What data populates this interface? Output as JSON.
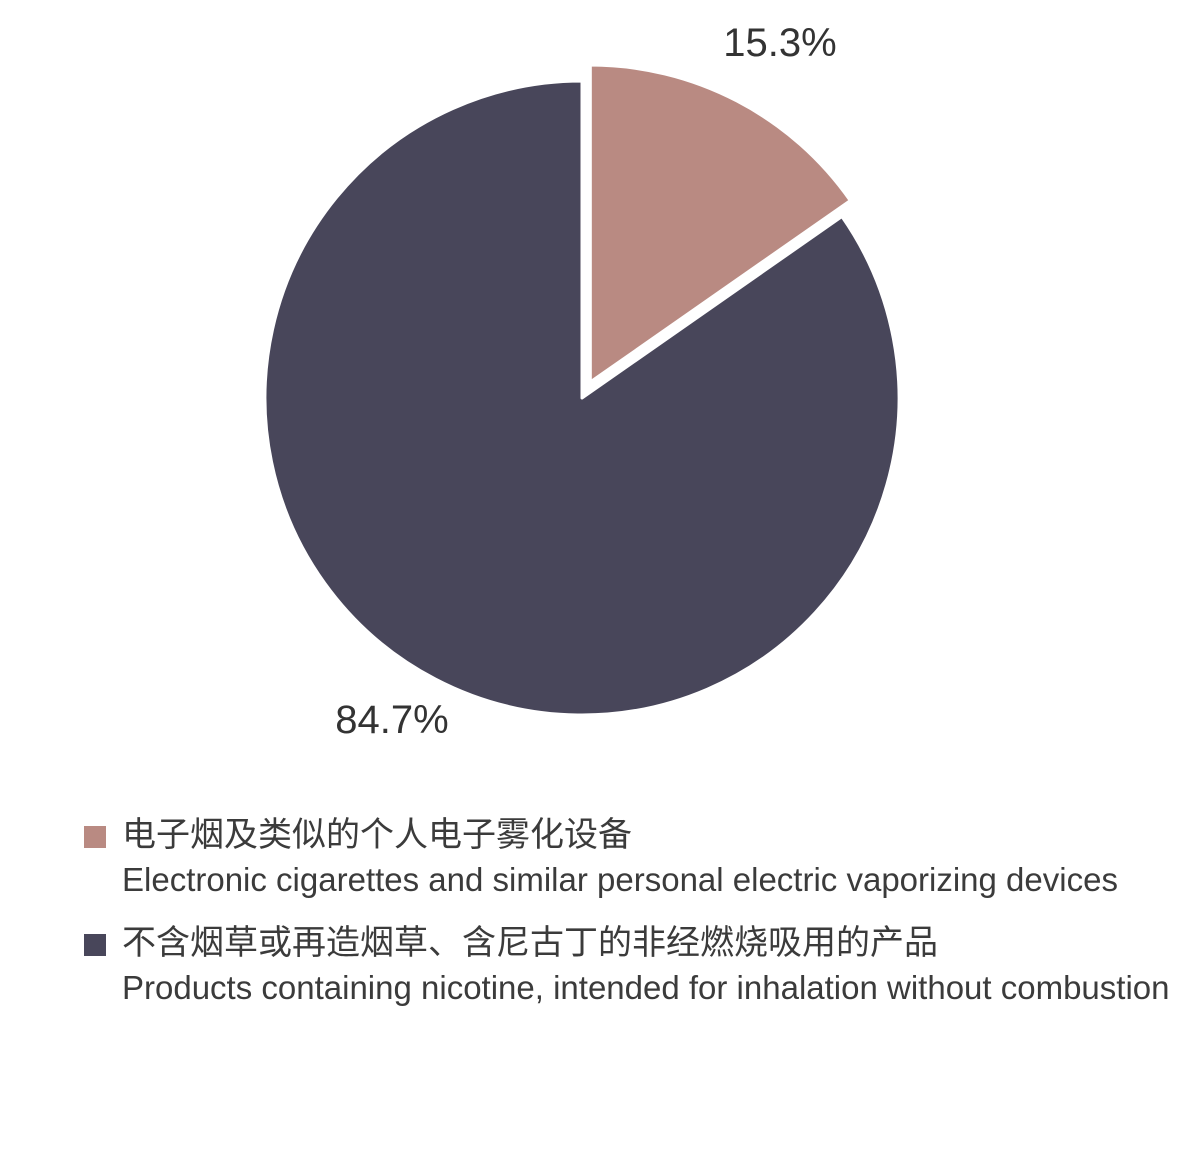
{
  "chart_data": {
    "type": "pie",
    "title": "",
    "start_angle_deg": 0,
    "direction": "clockwise",
    "slices": [
      {
        "label_zh": "电子烟及类似的个人电子雾化设备",
        "label_en": "Electronic cigarettes and similar personal electric vaporizing devices",
        "value": 15.3,
        "display": "15.3%",
        "color": "#b98a82",
        "exploded": true
      },
      {
        "label_zh": "不含烟草或再造烟草、含尼古丁的非经燃烧吸用的产品",
        "label_en": "Products containing nicotine, intended for inhalation without combustion",
        "value": 84.7,
        "display": "84.7%",
        "color": "#48465a",
        "exploded": false
      }
    ],
    "legend_position": "bottom-left"
  }
}
